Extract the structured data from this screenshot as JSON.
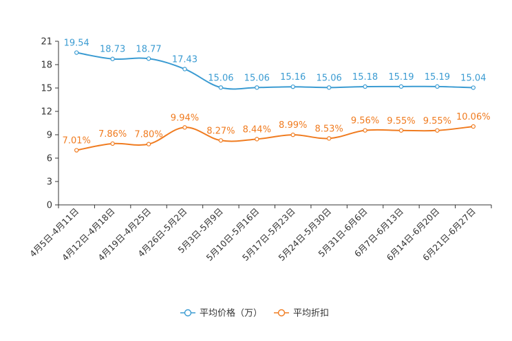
{
  "chart_data": {
    "type": "line",
    "title": "",
    "xlabel": "",
    "ylabel": "",
    "ylim": [
      0,
      21
    ],
    "yticks": [
      0,
      3,
      6,
      9,
      12,
      15,
      18,
      21
    ],
    "grid": false,
    "legend_position": "bottom-center",
    "categories": [
      "4月5日-4月11日",
      "4月12日-4月18日",
      "4月19日-4月25日",
      "4月26日-5月2日",
      "5月3日-5月9日",
      "5月10日-5月16日",
      "5月17日-5月23日",
      "5月24日-5月30日",
      "5月31日-6月6日",
      "6月7日-6月13日",
      "6月14日-6月20日",
      "6月21日-6月27日"
    ],
    "series": [
      {
        "name": "平均价格（万）",
        "color": "#3a9bd2",
        "values": [
          19.54,
          18.73,
          18.77,
          17.43,
          15.06,
          15.06,
          15.16,
          15.06,
          15.18,
          15.19,
          15.19,
          15.04
        ],
        "labels": [
          "19.54",
          "18.73",
          "18.77",
          "17.43",
          "15.06",
          "15.06",
          "15.16",
          "15.06",
          "15.18",
          "15.19",
          "15.19",
          "15.04"
        ]
      },
      {
        "name": "平均折扣",
        "color": "#f07b1f",
        "values": [
          7.01,
          7.86,
          7.8,
          9.94,
          8.27,
          8.44,
          8.99,
          8.53,
          9.56,
          9.55,
          9.55,
          10.06
        ],
        "labels": [
          "7.01%",
          "7.86%",
          "7.80%",
          "9.94%",
          "8.27%",
          "8.44%",
          "8.99%",
          "8.53%",
          "9.56%",
          "9.55%",
          "9.55%",
          "10.06%"
        ]
      }
    ]
  }
}
